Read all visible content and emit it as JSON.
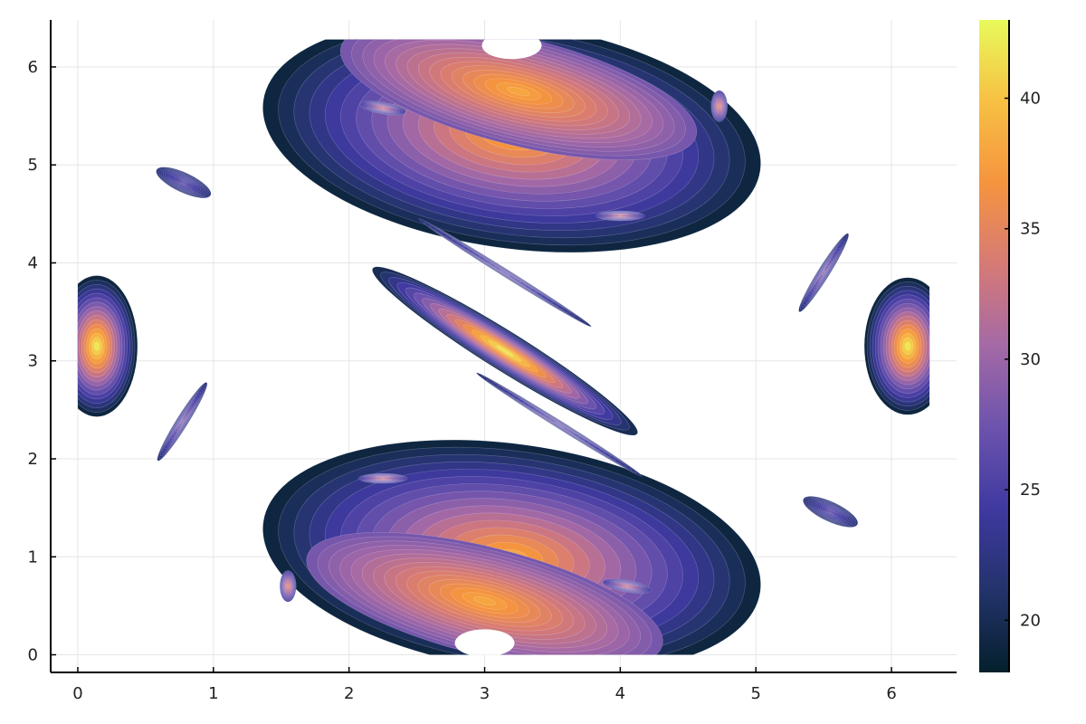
{
  "chart_data": {
    "type": "scatter",
    "title": "",
    "xlabel": "",
    "ylabel": "",
    "xlim": [
      -0.2,
      6.48
    ],
    "ylim": [
      -0.18,
      6.48
    ],
    "grid": true,
    "xticks": [
      0,
      1,
      2,
      3,
      4,
      5,
      6
    ],
    "xtick_labels": [
      "0",
      "1",
      "2",
      "3",
      "4",
      "5",
      "6"
    ],
    "yticks": [
      0,
      1,
      2,
      3,
      4,
      5,
      6
    ],
    "ytick_labels": [
      "0",
      "1",
      "2",
      "3",
      "4",
      "5",
      "6"
    ],
    "colorbar": {
      "range": [
        18,
        43
      ],
      "ticks": [
        20,
        25,
        30,
        35,
        40
      ],
      "tick_labels": [
        "20",
        "25",
        "30",
        "35",
        "40"
      ],
      "colormap": "thermal",
      "stops": [
        "#04202c",
        "#23336b",
        "#3f39a0",
        "#6c53ad",
        "#a469a6",
        "#d67a76",
        "#f5943f",
        "#f7c043",
        "#e8fa5b"
      ]
    },
    "islands": [
      {
        "name": "top-chaotic-band",
        "cx": 3.2,
        "cy": 5.3,
        "rx": 1.85,
        "ry": 1.15,
        "rot": -8,
        "v_outer": 19,
        "v_inner": 38
      },
      {
        "name": "bottom-chaotic-band",
        "cx": 3.2,
        "cy": 1.0,
        "rx": 1.85,
        "ry": 1.15,
        "rot": -8,
        "v_outer": 19,
        "v_inner": 38
      },
      {
        "name": "top-main-center",
        "cx": 3.25,
        "cy": 5.75,
        "rx": 1.35,
        "ry": 0.55,
        "rot": -14,
        "v_outer": 28,
        "v_inner": 38
      },
      {
        "name": "bottom-main-center",
        "cx": 3.0,
        "cy": 0.55,
        "rx": 1.35,
        "ry": 0.55,
        "rot": -14,
        "v_outer": 28,
        "v_inner": 38
      },
      {
        "name": "center-diagonal",
        "cx": 3.15,
        "cy": 3.1,
        "rx": 1.15,
        "ry": 0.2,
        "rot": -32,
        "v_outer": 20,
        "v_inner": 42
      },
      {
        "name": "upper-thin-diagonal",
        "cx": 3.15,
        "cy": 3.9,
        "rx": 0.75,
        "ry": 0.04,
        "rot": -32,
        "v_outer": 22,
        "v_inner": 27
      },
      {
        "name": "lower-thin-diagonal",
        "cx": 3.55,
        "cy": 2.35,
        "rx": 0.72,
        "ry": 0.04,
        "rot": -32,
        "v_outer": 22,
        "v_inner": 27
      },
      {
        "name": "left-edge-island",
        "cx": 0.14,
        "cy": 3.15,
        "rx": 0.3,
        "ry": 0.72,
        "rot": 0,
        "v_outer": 19,
        "v_inner": 42
      },
      {
        "name": "right-edge-island",
        "cx": 6.12,
        "cy": 3.15,
        "rx": 0.32,
        "ry": 0.7,
        "rot": 0,
        "v_outer": 19,
        "v_inner": 42
      },
      {
        "name": "small-island-upper-left",
        "cx": 0.78,
        "cy": 4.82,
        "rx": 0.22,
        "ry": 0.1,
        "rot": -25,
        "v_outer": 22,
        "v_inner": 26
      },
      {
        "name": "small-island-lower-left",
        "cx": 0.77,
        "cy": 2.38,
        "rx": 0.34,
        "ry": 0.06,
        "rot": 58,
        "v_outer": 22,
        "v_inner": 29
      },
      {
        "name": "small-island-upper-right",
        "cx": 5.5,
        "cy": 3.9,
        "rx": 0.34,
        "ry": 0.06,
        "rot": 58,
        "v_outer": 22,
        "v_inner": 29
      },
      {
        "name": "small-island-lower-right",
        "cx": 5.55,
        "cy": 1.46,
        "rx": 0.22,
        "ry": 0.1,
        "rot": -25,
        "v_outer": 22,
        "v_inner": 26
      },
      {
        "name": "sub-island-top-left",
        "cx": 2.25,
        "cy": 5.58,
        "rx": 0.17,
        "ry": 0.06,
        "rot": -10,
        "v_outer": 24,
        "v_inner": 33
      },
      {
        "name": "sub-island-top-right",
        "cx": 4.73,
        "cy": 5.6,
        "rx": 0.06,
        "ry": 0.16,
        "rot": 0,
        "v_outer": 24,
        "v_inner": 35
      },
      {
        "name": "sub-island-top-bottom",
        "cx": 4.0,
        "cy": 4.48,
        "rx": 0.18,
        "ry": 0.05,
        "rot": 0,
        "v_outer": 24,
        "v_inner": 33
      },
      {
        "name": "sub-island-bottom-left",
        "cx": 1.55,
        "cy": 0.7,
        "rx": 0.06,
        "ry": 0.16,
        "rot": 0,
        "v_outer": 24,
        "v_inner": 35
      },
      {
        "name": "sub-island-bottom-right",
        "cx": 4.05,
        "cy": 0.7,
        "rx": 0.18,
        "ry": 0.06,
        "rot": -10,
        "v_outer": 24,
        "v_inner": 33
      },
      {
        "name": "sub-island-bottom-top",
        "cx": 2.25,
        "cy": 1.8,
        "rx": 0.18,
        "ry": 0.05,
        "rot": 0,
        "v_outer": 24,
        "v_inner": 33
      }
    ],
    "holes": [
      {
        "name": "top-main-hole",
        "cx": 3.2,
        "cy": 6.22,
        "rx": 0.22,
        "ry": 0.14
      },
      {
        "name": "bottom-main-hole",
        "cx": 3.0,
        "cy": 0.12,
        "rx": 0.22,
        "ry": 0.14
      }
    ]
  }
}
